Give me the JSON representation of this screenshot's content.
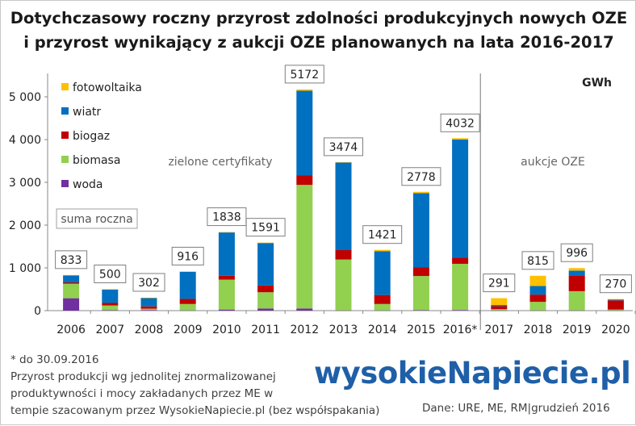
{
  "title_line1": "Dotychczasowy roczny przyrost zdolności produkcyjnych nowych OZE",
  "title_line2": "i przyrost wynikający z aukcji OZE planowanych na lata 2016-2017",
  "footnotes": [
    "* do 30.09.2016",
    "Przyrost  produkcji wg jednolitej  znormalizowanej",
    "produktywności  i mocy zakładanych przez ME w",
    "tempie szacowanym przez WysokieNapiecie.pl (bez współspakania)"
  ],
  "logo_text": "wysokieNapiecie.pl",
  "source_text": "Dane: URE, ME, RM|grudzień 2016",
  "colors": {
    "fotowoltaika": "#ffc000",
    "wiatr": "#0070c0",
    "biogaz": "#c00000",
    "biomasa": "#92d050",
    "woda": "#7030a0",
    "logo": "#1f5fa8"
  },
  "chart_data": {
    "type": "bar",
    "stacked": true,
    "unit_label": "GWh",
    "categories": [
      "2006",
      "2007",
      "2008",
      "2009",
      "2010",
      "2011",
      "2012",
      "2013",
      "2014",
      "2015",
      "2016*",
      "2017",
      "2018",
      "2019",
      "2020"
    ],
    "series": [
      {
        "name": "woda",
        "color": "#7030a0",
        "values": [
          290,
          10,
          15,
          5,
          25,
          50,
          50,
          5,
          5,
          10,
          15,
          5,
          5,
          5,
          5
        ]
      },
      {
        "name": "biomasa",
        "color": "#92d050",
        "values": [
          340,
          110,
          30,
          150,
          700,
          380,
          2890,
          1190,
          150,
          800,
          1080,
          30,
          200,
          450,
          20
        ]
      },
      {
        "name": "biogaz",
        "color": "#c00000",
        "values": [
          30,
          60,
          55,
          120,
          90,
          160,
          220,
          220,
          210,
          200,
          140,
          70,
          170,
          370,
          215
        ]
      },
      {
        "name": "wiatr",
        "color": "#0070c0",
        "values": [
          163,
          315,
          197,
          636,
          1013,
          991,
          1982,
          2049,
          1026,
          1738,
          2767,
          26,
          200,
          111,
          20
        ]
      },
      {
        "name": "fotowoltaika",
        "color": "#ffc000",
        "values": [
          10,
          5,
          5,
          5,
          10,
          10,
          30,
          10,
          30,
          30,
          30,
          160,
          240,
          60,
          10
        ]
      }
    ],
    "totals": [
      "833",
      "500",
      "302",
      "916",
      "1838",
      "1591",
      "5172",
      "3474",
      "1421",
      "2778",
      "4032",
      "291",
      "815",
      "996",
      "270"
    ],
    "y_ticks": [
      "0",
      "1 000",
      "2 000",
      "3 000",
      "4 000",
      "5 000"
    ],
    "ylim": [
      0,
      5500
    ],
    "legend_order": [
      "fotowoltaika",
      "wiatr",
      "biogaz",
      "biomasa",
      "woda"
    ],
    "legend_position": "top-left",
    "annotations": {
      "sum_label": "suma roczna",
      "left_region": "zielone certyfikaty",
      "right_region": "aukcje OZE"
    },
    "divider_after_category": "2016*",
    "grid": false
  }
}
